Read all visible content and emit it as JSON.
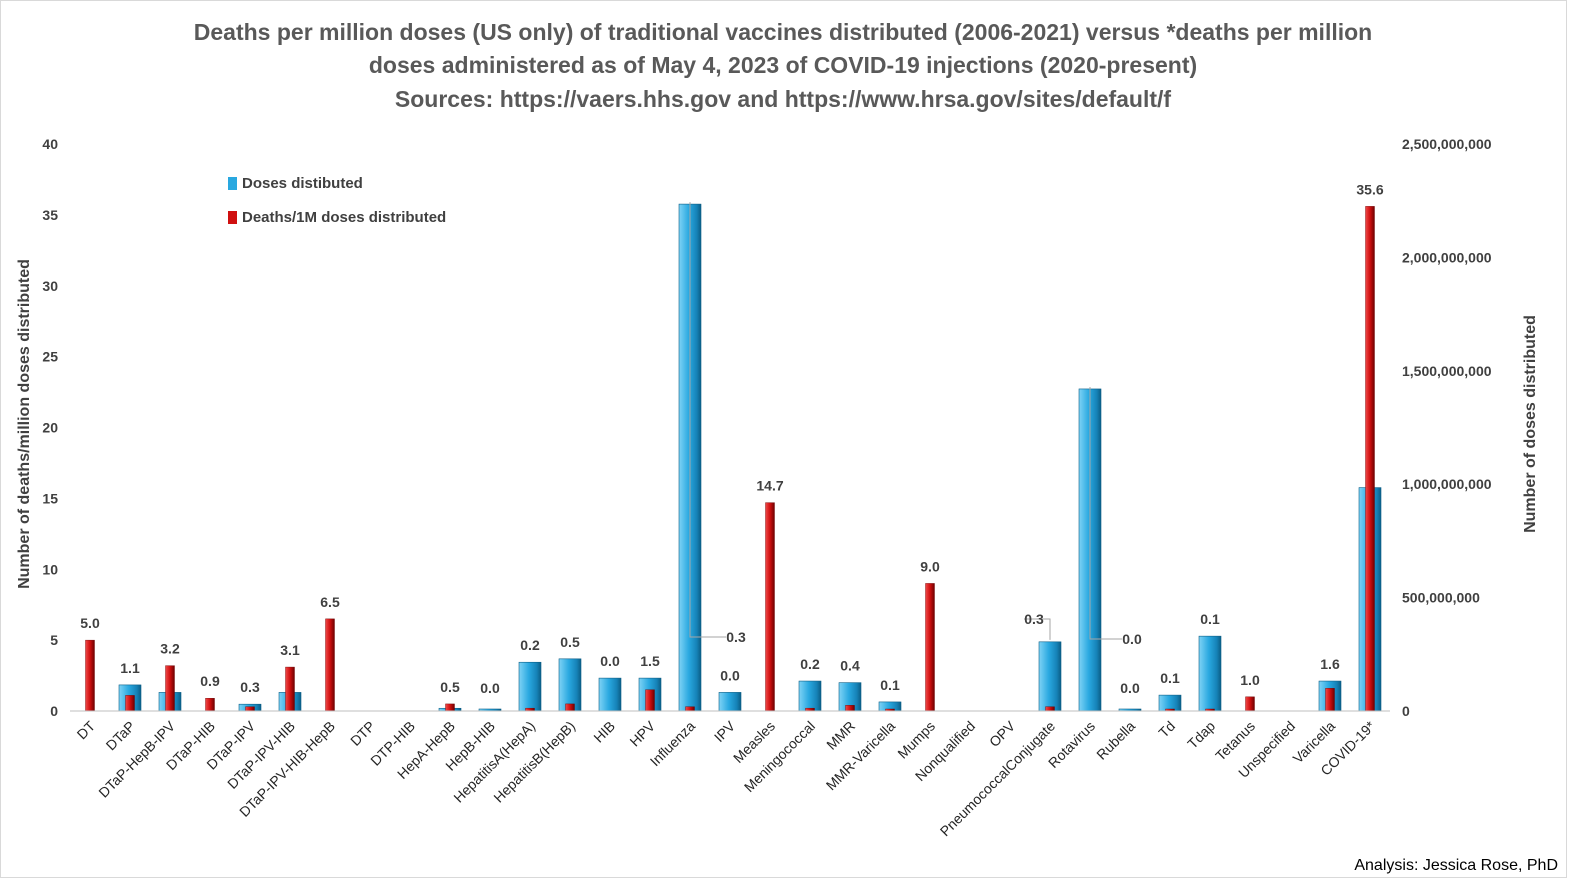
{
  "chart_data": {
    "type": "bar",
    "title": [
      "Deaths per million doses (US only) of traditional vaccines distributed (2006-2021) versus *deaths per million",
      "doses administered as of May 4, 2023 of COVID-19 injections (2020-present)",
      "Sources: https://vaers.hhs.gov and https://www.hrsa.gov/sites/default/f"
    ],
    "ylabel_left": "Number of deaths/million doses distributed",
    "ylabel_right": "Number of doses distributed",
    "ylim_left": [
      0,
      40
    ],
    "ylim_right": [
      0,
      2500000000
    ],
    "left_ticks": [
      "0",
      "5",
      "10",
      "15",
      "20",
      "25",
      "30",
      "35",
      "40"
    ],
    "right_ticks": [
      "0",
      "500,000,000",
      "1,000,000,000",
      "1,500,000,000",
      "2,000,000,000",
      "2,500,000,000"
    ],
    "grid": false,
    "legend_position": "top-left",
    "categories": [
      "DT",
      "DTaP",
      "DTaP-HepB-IPV",
      "DTaP-HIB",
      "DTaP-IPV",
      "DTaP-IPV-HIB",
      "DTaP-IPV-HIB-HepB",
      "DTP",
      "DTP-HIB",
      "HepA-HepB",
      "HepB-HIB",
      "HepatitisA(HepA)",
      "HepatitisB(HepB)",
      "HIB",
      "HPV",
      "Influenza",
      "IPV",
      "Measles",
      "Meningococcal",
      "MMR",
      "MMR-Varicella",
      "Mumps",
      "Nonqualified",
      "OPV",
      "PneumococcalConjugate",
      "Rotavirus",
      "Rubella",
      "Td",
      "Tdap",
      "Tetanus",
      "Unspecified",
      "Varicella",
      "COVID-19*"
    ],
    "series": [
      {
        "name": "Doses distibuted",
        "axis": "right",
        "color": "#29A8E0",
        "values": [
          0,
          115000000,
          82000000,
          0,
          30000000,
          82000000,
          0,
          0,
          0,
          12000000,
          3000000,
          215000000,
          230000000,
          145000000,
          145000000,
          2235000000,
          82000000,
          0,
          132000000,
          125000000,
          40000000,
          0,
          0,
          0,
          305000000,
          1420000000,
          3000000,
          70000000,
          330000000,
          0,
          0,
          132000000,
          985000000
        ]
      },
      {
        "name": "Deaths/1M doses distributed",
        "axis": "left",
        "color": "#D01010",
        "values": [
          5.0,
          1.1,
          3.2,
          0.9,
          0.3,
          3.1,
          6.5,
          null,
          null,
          0.5,
          0.0,
          0.2,
          0.5,
          0.0,
          1.5,
          0.3,
          0.0,
          14.7,
          0.2,
          0.4,
          0.1,
          9.0,
          null,
          null,
          0.3,
          0.0,
          0.0,
          0.1,
          0.1,
          1.0,
          null,
          1.6,
          35.6
        ]
      }
    ],
    "data_labels": [
      "5.0",
      "1.1",
      "3.2",
      "0.9",
      "0.3",
      "3.1",
      "6.5",
      "",
      "",
      "0.5",
      "0.0",
      "0.2",
      "0.5",
      "0.0",
      "1.5",
      "0.3",
      "0.0",
      "14.7",
      "0.2",
      "0.4",
      "0.1",
      "9.0",
      "",
      "",
      "0.3",
      "0.0",
      "0.0",
      "0.1",
      "0.1",
      "1.0",
      "",
      "1.6",
      "35.6"
    ],
    "annotation": "Analysis: Jessica Rose, PhD"
  },
  "colors": {
    "doses_bar": "#29A8E0",
    "doses_bar_dark": "#0B5E86",
    "deaths_bar": "#D01010",
    "deaths_bar_dark": "#6E0000"
  }
}
